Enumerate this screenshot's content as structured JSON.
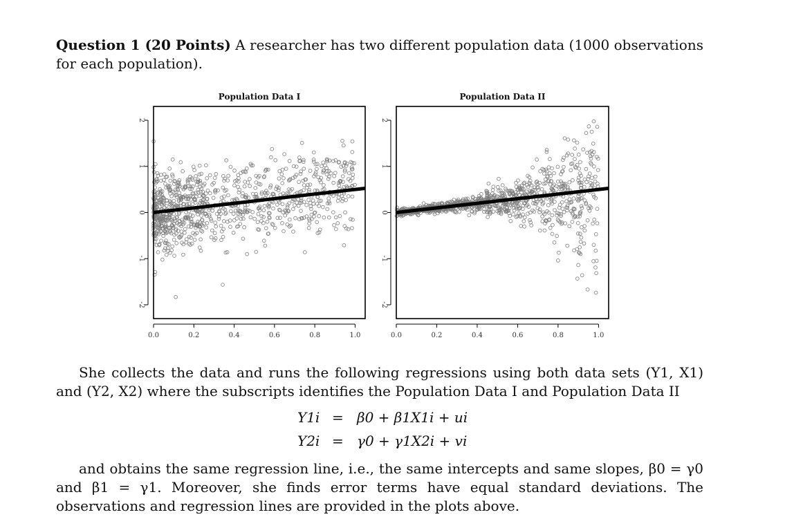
{
  "question": {
    "heading": "Question 1 (20 Points)",
    "intro": " A researcher has two different population data (1000 observations for each population)."
  },
  "figures": {
    "plots": [
      {
        "title": "Population Data I",
        "x_ticks": [
          "0.0",
          "0.2",
          "0.4",
          "0.6",
          "0.8",
          "1.0"
        ],
        "y_ticks": [
          "-2",
          "-1",
          "0",
          "1",
          "2"
        ]
      },
      {
        "title": "Population Data II",
        "x_ticks": [
          "0.0",
          "0.2",
          "0.4",
          "0.6",
          "0.8",
          "1.0"
        ],
        "y_ticks": [
          "-2",
          "-1",
          "0",
          "1",
          "2"
        ]
      }
    ]
  },
  "chart_data": [
    {
      "type": "scatter",
      "title": "Population Data I",
      "xlabel": "",
      "ylabel": "",
      "xlim": [
        0,
        1.05
      ],
      "ylim": [
        -2.3,
        2.3
      ],
      "n_observations": 1000,
      "noise_pattern": "homoskedastic",
      "noise_sd": 0.45,
      "regression_line": {
        "intercept": 0.0,
        "slope": 0.5
      }
    },
    {
      "type": "scatter",
      "title": "Population Data II",
      "xlabel": "",
      "ylabel": "",
      "xlim": [
        0,
        1.05
      ],
      "ylim": [
        -2.3,
        2.3
      ],
      "n_observations": 1000,
      "noise_pattern": "heteroskedastic (spread grows with x)",
      "noise_sd": 0.45,
      "regression_line": {
        "intercept": 0.0,
        "slope": 0.5
      }
    }
  ],
  "body": {
    "p2": "She collects the data and runs the following regressions using both data sets (Y1, X1) and (Y2, X2) where the subscripts identifies the Population Data I and Population Data II",
    "p3": "and obtains the same regression line, i.e., the same intercepts and same slopes, β0 = γ0 and β1 = γ1. Moreover, she finds error terms have equal standard deviations. The observations and regression lines are provided in the plots above."
  },
  "equations": [
    {
      "lhs": "Y1i",
      "rel": "=",
      "rhs": "β0 + β1X1i + ui"
    },
    {
      "lhs": "Y2i",
      "rel": "=",
      "rhs": "γ0 + γ1X2i + vi"
    }
  ],
  "colors": {
    "points": "#7a7a7a",
    "line": "#000000",
    "text": "#111111"
  }
}
